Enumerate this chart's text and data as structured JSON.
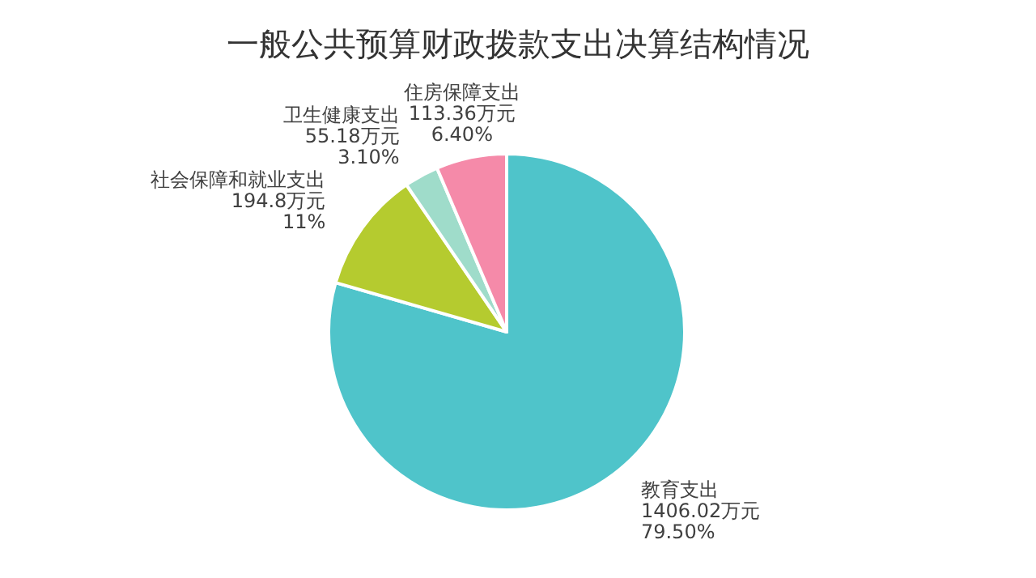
{
  "chart_data": {
    "type": "pie",
    "title": "一般公共预算财政拨款支出决算结构情况",
    "categories": [
      "教育支出",
      "社会保障和就业支出",
      "卫生健康支出",
      "住房保障支出"
    ],
    "values": [
      1406.02,
      194.8,
      55.18,
      113.36
    ],
    "value_labels": [
      "1406.02万元\n79.50%",
      "194.8万元\n11%",
      "55.18万元\n3.10%",
      "113.36万元\n6.40%"
    ],
    "colors": [
      "#4fc4ca",
      "#b5cb2f",
      "#9fdcca",
      "#f58aa9"
    ]
  }
}
